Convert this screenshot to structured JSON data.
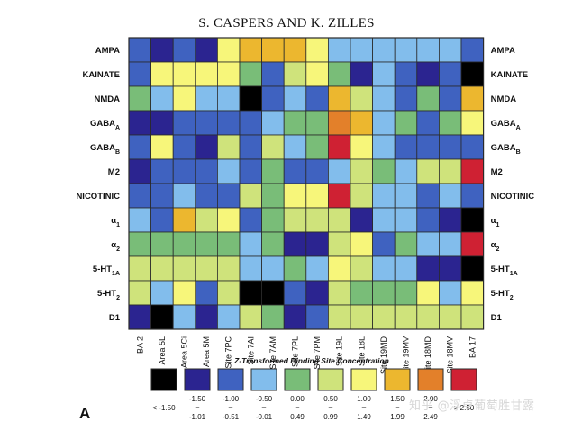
{
  "page": {
    "title": "S. CASPERS AND K. ZILLES",
    "panel_letter": "A"
  },
  "watermark": "知乎 @浮卓葡萄胜甘露",
  "colors": {
    "black": "#000000",
    "navy": "#2b2490",
    "blue": "#3f62c0",
    "lightblue": "#82bdec",
    "green": "#79bd78",
    "lightgreen": "#cfe37b",
    "yellow": "#f7f67a",
    "gold": "#ecb72f",
    "orange": "#e3802a",
    "red": "#cf2133",
    "grid": "#2a2a2a"
  },
  "chart_data": {
    "type": "heatmap",
    "title": "",
    "xlabel": "",
    "ylabel": "",
    "rows": [
      "AMPA",
      "KAINATE",
      "NMDA",
      "GABA_A",
      "GABA_B",
      "M2",
      "NICOTINIC",
      "α_1",
      "α_2",
      "5-HT_1A",
      "5-HT_2",
      "D1"
    ],
    "columns": [
      "BA 2",
      "Area 5L",
      "Area 5Ci",
      "Area 5M",
      "Site 7PC",
      "Site 7AI",
      "Site 7AM",
      "Site 7PL",
      "Site 7PM",
      "Site 19L",
      "Site 18L",
      "Site 19MD",
      "Site 19MV",
      "Site 18MD",
      "Site 18MV",
      "BA 17"
    ],
    "cells": [
      [
        "blue",
        "navy",
        "blue",
        "navy",
        "yellow",
        "gold",
        "gold",
        "gold",
        "yellow",
        "lightblue",
        "lightblue",
        "lightblue",
        "lightblue",
        "lightblue",
        "lightblue",
        "blue"
      ],
      [
        "blue",
        "yellow",
        "yellow",
        "yellow",
        "yellow",
        "green",
        "blue",
        "lightgreen",
        "yellow",
        "green",
        "navy",
        "lightblue",
        "blue",
        "navy",
        "blue",
        "black"
      ],
      [
        "green",
        "lightblue",
        "yellow",
        "lightblue",
        "lightblue",
        "black",
        "blue",
        "lightblue",
        "blue",
        "gold",
        "lightgreen",
        "lightblue",
        "blue",
        "green",
        "blue",
        "gold"
      ],
      [
        "navy",
        "navy",
        "blue",
        "blue",
        "blue",
        "blue",
        "lightblue",
        "green",
        "green",
        "orange",
        "gold",
        "lightblue",
        "green",
        "blue",
        "green",
        "yellow"
      ],
      [
        "blue",
        "yellow",
        "blue",
        "navy",
        "lightgreen",
        "blue",
        "lightgreen",
        "lightblue",
        "green",
        "red",
        "yellow",
        "lightblue",
        "blue",
        "blue",
        "blue",
        "blue"
      ],
      [
        "navy",
        "blue",
        "blue",
        "blue",
        "lightblue",
        "blue",
        "green",
        "blue",
        "blue",
        "lightblue",
        "lightgreen",
        "green",
        "lightblue",
        "lightgreen",
        "lightgreen",
        "red"
      ],
      [
        "blue",
        "blue",
        "lightblue",
        "blue",
        "blue",
        "lightgreen",
        "green",
        "yellow",
        "yellow",
        "red",
        "lightgreen",
        "lightblue",
        "lightblue",
        "blue",
        "lightblue",
        "blue"
      ],
      [
        "lightblue",
        "blue",
        "gold",
        "lightgreen",
        "yellow",
        "blue",
        "green",
        "lightgreen",
        "lightgreen",
        "lightgreen",
        "navy",
        "lightblue",
        "lightblue",
        "blue",
        "navy",
        "black"
      ],
      [
        "green",
        "green",
        "green",
        "green",
        "green",
        "lightblue",
        "green",
        "navy",
        "navy",
        "lightgreen",
        "yellow",
        "blue",
        "green",
        "lightblue",
        "lightblue",
        "red"
      ],
      [
        "lightgreen",
        "lightgreen",
        "lightgreen",
        "lightgreen",
        "lightgreen",
        "lightblue",
        "lightblue",
        "green",
        "lightblue",
        "yellow",
        "lightgreen",
        "lightblue",
        "lightblue",
        "navy",
        "navy",
        "black"
      ],
      [
        "lightgreen",
        "lightblue",
        "yellow",
        "blue",
        "lightgreen",
        "black",
        "black",
        "blue",
        "navy",
        "lightgreen",
        "green",
        "green",
        "green",
        "yellow",
        "lightblue",
        "yellow"
      ],
      [
        "navy",
        "black",
        "lightblue",
        "navy",
        "lightblue",
        "lightgreen",
        "green",
        "navy",
        "blue",
        "lightgreen",
        "lightgreen",
        "lightgreen",
        "lightgreen",
        "lightgreen",
        "lightgreen",
        "lightgreen"
      ]
    ],
    "legend": {
      "title": "Z-Transformed Binding Site Concentration",
      "bins": [
        {
          "color": "black",
          "top": "< -1.50",
          "bottom": ""
        },
        {
          "color": "navy",
          "top": "-1.50",
          "bottom": "-1.01"
        },
        {
          "color": "blue",
          "top": "-1.00",
          "bottom": "-0.51"
        },
        {
          "color": "lightblue",
          "top": "-0.50",
          "bottom": "-0.01"
        },
        {
          "color": "green",
          "top": "0.00",
          "bottom": "0.49"
        },
        {
          "color": "lightgreen",
          "top": "0.50",
          "bottom": "0.99"
        },
        {
          "color": "yellow",
          "top": "1.00",
          "bottom": "1.49"
        },
        {
          "color": "gold",
          "top": "1.50",
          "bottom": "1.99"
        },
        {
          "color": "orange",
          "top": "2.00",
          "bottom": "2.49"
        },
        {
          "color": "red",
          "top": "> 2.50",
          "bottom": ""
        }
      ]
    }
  }
}
